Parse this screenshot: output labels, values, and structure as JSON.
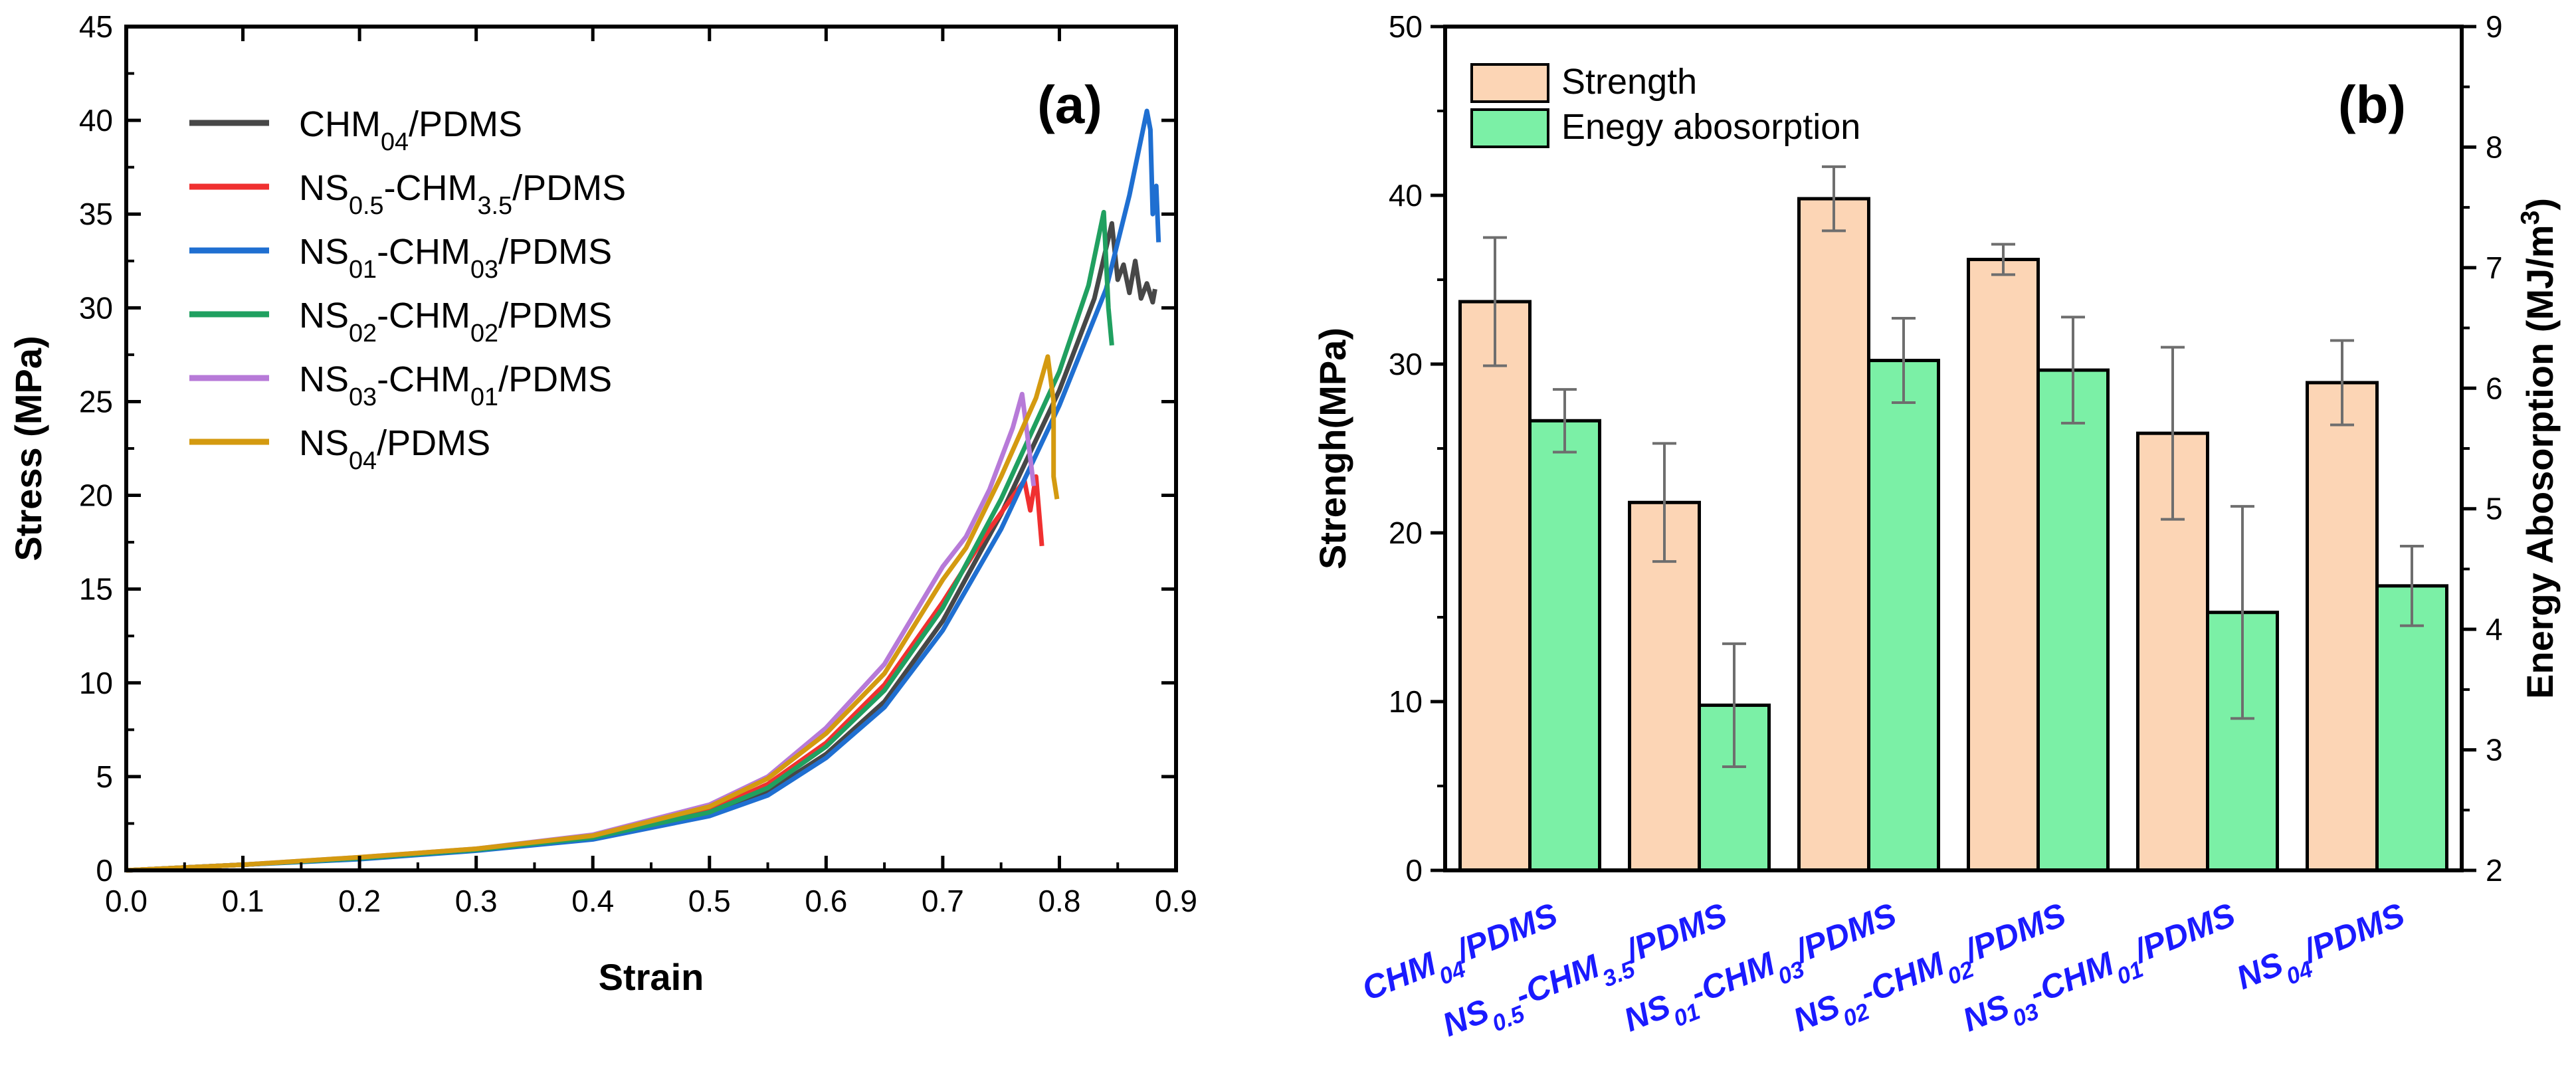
{
  "chart_data": [
    {
      "type": "line",
      "panel_label": "(a)",
      "xlabel": "Strain",
      "ylabel": "Stress (MPa)",
      "xlim": [
        0.0,
        0.9
      ],
      "ylim": [
        0,
        45
      ],
      "xticks": [
        "0.0",
        "0.1",
        "0.2",
        "0.3",
        "0.4",
        "0.5",
        "0.6",
        "0.7",
        "0.8",
        "0.9"
      ],
      "yticks": [
        "0",
        "5",
        "10",
        "15",
        "20",
        "25",
        "30",
        "35",
        "40",
        "45"
      ],
      "legend_position": "top-left",
      "series": [
        {
          "name": "CHM04/PDMS",
          "name_parts": [
            {
              "t": "CHM"
            },
            {
              "t": "04",
              "sub": true
            },
            {
              "t": "/PDMS"
            }
          ],
          "color": "#474747",
          "points": [
            [
              0,
              0
            ],
            [
              0.1,
              0.3
            ],
            [
              0.2,
              0.65
            ],
            [
              0.3,
              1.1
            ],
            [
              0.4,
              1.7
            ],
            [
              0.5,
              3.0
            ],
            [
              0.55,
              4.2
            ],
            [
              0.6,
              6.2
            ],
            [
              0.65,
              9.0
            ],
            [
              0.7,
              13.3
            ],
            [
              0.75,
              19.0
            ],
            [
              0.8,
              25.6
            ],
            [
              0.83,
              30.5
            ],
            [
              0.845,
              34.5
            ],
            [
              0.85,
              31.5
            ],
            [
              0.855,
              32.3
            ],
            [
              0.86,
              30.8
            ],
            [
              0.865,
              32.5
            ],
            [
              0.87,
              30.5
            ],
            [
              0.875,
              31.3
            ],
            [
              0.88,
              30.3
            ],
            [
              0.882,
              31.0
            ]
          ]
        },
        {
          "name": "NS0.5-CHM3.5/PDMS",
          "name_parts": [
            {
              "t": "NS"
            },
            {
              "t": "0.5",
              "sub": true
            },
            {
              "t": "-CHM"
            },
            {
              "t": "3.5",
              "sub": true
            },
            {
              "t": "/PDMS"
            }
          ],
          "color": "#f03030",
          "points": [
            [
              0,
              0
            ],
            [
              0.1,
              0.3
            ],
            [
              0.2,
              0.65
            ],
            [
              0.3,
              1.1
            ],
            [
              0.4,
              1.75
            ],
            [
              0.5,
              3.2
            ],
            [
              0.55,
              4.6
            ],
            [
              0.6,
              6.8
            ],
            [
              0.65,
              9.9
            ],
            [
              0.7,
              14.3
            ],
            [
              0.74,
              18.2
            ],
            [
              0.77,
              20.8
            ],
            [
              0.775,
              19.2
            ],
            [
              0.78,
              21.0
            ],
            [
              0.785,
              17.3
            ]
          ]
        },
        {
          "name": "NS01-CHM03/PDMS",
          "name_parts": [
            {
              "t": "NS"
            },
            {
              "t": "01",
              "sub": true
            },
            {
              "t": "-CHM"
            },
            {
              "t": "03",
              "sub": true
            },
            {
              "t": "/PDMS"
            }
          ],
          "color": "#1f6fd1",
          "points": [
            [
              0,
              0
            ],
            [
              0.1,
              0.3
            ],
            [
              0.2,
              0.6
            ],
            [
              0.3,
              1.05
            ],
            [
              0.4,
              1.65
            ],
            [
              0.5,
              2.9
            ],
            [
              0.55,
              4.0
            ],
            [
              0.6,
              6.0
            ],
            [
              0.65,
              8.7
            ],
            [
              0.7,
              12.8
            ],
            [
              0.75,
              18.2
            ],
            [
              0.8,
              24.8
            ],
            [
              0.84,
              31.0
            ],
            [
              0.86,
              36.0
            ],
            [
              0.875,
              40.5
            ],
            [
              0.878,
              39.5
            ],
            [
              0.88,
              35.0
            ],
            [
              0.883,
              36.5
            ],
            [
              0.885,
              33.5
            ]
          ]
        },
        {
          "name": "NS02-CHM02/PDMS",
          "name_parts": [
            {
              "t": "NS"
            },
            {
              "t": "02",
              "sub": true
            },
            {
              "t": "-CHM"
            },
            {
              "t": "02",
              "sub": true
            },
            {
              "t": "/PDMS"
            }
          ],
          "color": "#20a060",
          "points": [
            [
              0,
              0
            ],
            [
              0.1,
              0.3
            ],
            [
              0.2,
              0.65
            ],
            [
              0.3,
              1.1
            ],
            [
              0.4,
              1.75
            ],
            [
              0.5,
              3.1
            ],
            [
              0.55,
              4.4
            ],
            [
              0.6,
              6.6
            ],
            [
              0.65,
              9.6
            ],
            [
              0.7,
              14.0
            ],
            [
              0.75,
              19.8
            ],
            [
              0.8,
              26.6
            ],
            [
              0.825,
              31.2
            ],
            [
              0.838,
              35.1
            ],
            [
              0.842,
              30.0
            ],
            [
              0.845,
              28.0
            ]
          ]
        },
        {
          "name": "NS03-CHM01/PDMS",
          "name_parts": [
            {
              "t": "NS"
            },
            {
              "t": "03",
              "sub": true
            },
            {
              "t": "-CHM"
            },
            {
              "t": "01",
              "sub": true
            },
            {
              "t": "/PDMS"
            }
          ],
          "color": "#b77ad8",
          "points": [
            [
              0,
              0
            ],
            [
              0.1,
              0.3
            ],
            [
              0.2,
              0.7
            ],
            [
              0.3,
              1.15
            ],
            [
              0.4,
              1.9
            ],
            [
              0.5,
              3.5
            ],
            [
              0.55,
              5.0
            ],
            [
              0.6,
              7.6
            ],
            [
              0.65,
              11.0
            ],
            [
              0.7,
              16.2
            ],
            [
              0.72,
              17.8
            ],
            [
              0.74,
              20.3
            ],
            [
              0.76,
              23.6
            ],
            [
              0.768,
              25.4
            ],
            [
              0.775,
              22.0
            ],
            [
              0.778,
              20.5
            ]
          ]
        },
        {
          "name": "NS04/PDMS",
          "name_parts": [
            {
              "t": "NS"
            },
            {
              "t": "04",
              "sub": true
            },
            {
              "t": "/PDMS"
            }
          ],
          "color": "#d49a10",
          "points": [
            [
              0,
              0
            ],
            [
              0.1,
              0.3
            ],
            [
              0.2,
              0.7
            ],
            [
              0.3,
              1.15
            ],
            [
              0.4,
              1.85
            ],
            [
              0.5,
              3.4
            ],
            [
              0.55,
              4.9
            ],
            [
              0.6,
              7.3
            ],
            [
              0.65,
              10.5
            ],
            [
              0.7,
              15.5
            ],
            [
              0.72,
              17.2
            ],
            [
              0.75,
              21.0
            ],
            [
              0.78,
              25.2
            ],
            [
              0.79,
              27.4
            ],
            [
              0.795,
              25.0
            ],
            [
              0.795,
              21.0
            ],
            [
              0.798,
              19.8
            ]
          ]
        }
      ]
    },
    {
      "type": "bar",
      "panel_label": "(b)",
      "categories": [
        "CHM04/PDMS",
        "NS0.5-CHM3.5/PDMS",
        "NS01-CHM03/PDMS",
        "NS02-CHM02/PDMS",
        "NS03-CHM01/PDMS",
        "NS04/PDMS"
      ],
      "category_parts": [
        [
          {
            "t": "CHM"
          },
          {
            "t": "04",
            "sub": true
          },
          {
            "t": "/PDMS"
          }
        ],
        [
          {
            "t": "NS"
          },
          {
            "t": "0.5",
            "sub": true
          },
          {
            "t": "-CHM"
          },
          {
            "t": "3.5",
            "sub": true
          },
          {
            "t": "/PDMS"
          }
        ],
        [
          {
            "t": "NS"
          },
          {
            "t": "01",
            "sub": true
          },
          {
            "t": "-CHM"
          },
          {
            "t": "03",
            "sub": true
          },
          {
            "t": "/PDMS"
          }
        ],
        [
          {
            "t": "NS"
          },
          {
            "t": "02",
            "sub": true
          },
          {
            "t": "-CHM"
          },
          {
            "t": "02",
            "sub": true
          },
          {
            "t": "/PDMS"
          }
        ],
        [
          {
            "t": "NS"
          },
          {
            "t": "03",
            "sub": true
          },
          {
            "t": "-CHM"
          },
          {
            "t": "01",
            "sub": true
          },
          {
            "t": "/PDMS"
          }
        ],
        [
          {
            "t": "NS"
          },
          {
            "t": "04",
            "sub": true
          },
          {
            "t": "/PDMS"
          }
        ]
      ],
      "ylabel_left": "Strengh(MPa)",
      "ylabel_right": "Energy Abosorption (MJ/m3)",
      "ylabel_right_parts": [
        {
          "t": "Energy Abosorption (MJ/m"
        },
        {
          "t": "3",
          "sup": true
        },
        {
          "t": ")"
        }
      ],
      "ylim_left": [
        0,
        50
      ],
      "ylim_right": [
        2,
        9
      ],
      "yticks_left": [
        "0",
        "10",
        "20",
        "30",
        "40",
        "50"
      ],
      "yticks_right": [
        "2",
        "3",
        "4",
        "5",
        "6",
        "7",
        "8",
        "9"
      ],
      "legend_position": "top-left",
      "series": [
        {
          "name": "Strength",
          "axis": "left",
          "color": "#fcd5b5",
          "values": [
            33.7,
            21.8,
            39.8,
            36.2,
            25.9,
            28.9
          ],
          "errors": [
            3.8,
            3.5,
            1.9,
            0.9,
            5.1,
            2.5
          ]
        },
        {
          "name": "Enegy abosorption",
          "axis": "right",
          "color": "#7bf0a6",
          "values": [
            5.73,
            3.37,
            6.23,
            6.15,
            4.14,
            4.36
          ],
          "errors": [
            0.26,
            0.51,
            0.35,
            0.44,
            0.88,
            0.33
          ]
        }
      ]
    }
  ]
}
